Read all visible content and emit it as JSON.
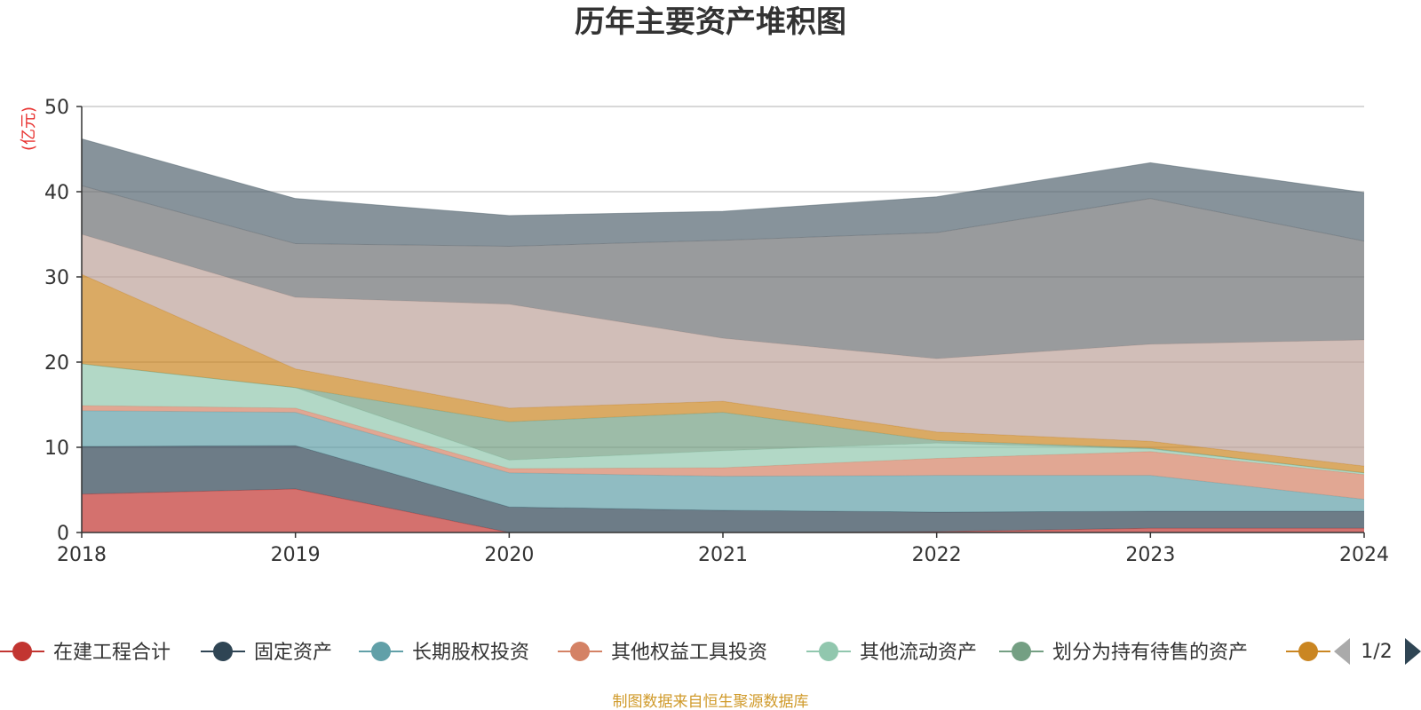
{
  "chart_data": {
    "type": "area",
    "title": "历年主要资产堆积图",
    "y_unit": "(亿元)",
    "x": [
      "2018",
      "2019",
      "2020",
      "2021",
      "2022",
      "2023",
      "2024"
    ],
    "ylim": [
      0,
      50
    ],
    "yticks": [
      0,
      10,
      20,
      30,
      40,
      50
    ],
    "grid": true,
    "stacked": true,
    "series": [
      {
        "name": "在建工程合计",
        "color": "#c23531",
        "values": [
          4.5,
          5.1,
          0.0,
          0.0,
          0.1,
          0.5,
          0.5
        ]
      },
      {
        "name": "固定资产",
        "color": "#2f4554",
        "values": [
          5.6,
          5.1,
          3.0,
          2.6,
          2.3,
          2.0,
          2.0
        ]
      },
      {
        "name": "长期股权投资",
        "color": "#61a0a8",
        "values": [
          4.2,
          3.9,
          4.0,
          4.0,
          4.3,
          4.2,
          1.4
        ]
      },
      {
        "name": "其他权益工具投资",
        "color": "#d48265",
        "values": [
          0.6,
          0.5,
          0.5,
          1.0,
          2.0,
          2.8,
          2.9
        ]
      },
      {
        "name": "其他流动资产",
        "color": "#91c7ae",
        "values": [
          4.9,
          2.4,
          1.0,
          2.0,
          1.8,
          0.3,
          0.2
        ]
      },
      {
        "name": "划分为持有待售的资产",
        "color": "#749f83",
        "values": [
          0.0,
          0.0,
          4.5,
          4.5,
          0.3,
          0.1,
          0.0
        ]
      },
      {
        "name": "",
        "color": "#ca8622",
        "values": [
          10.5,
          2.2,
          1.6,
          1.3,
          1.0,
          0.8,
          0.8
        ]
      },
      {
        "name": "",
        "color": "#bda29a",
        "values": [
          4.7,
          8.4,
          12.2,
          7.4,
          8.6,
          11.4,
          14.8
        ]
      },
      {
        "name": "",
        "color": "#6e7074",
        "values": [
          5.7,
          6.3,
          6.8,
          11.5,
          14.8,
          17.1,
          11.6
        ]
      },
      {
        "name": "",
        "color": "#546570",
        "values": [
          5.5,
          5.3,
          3.6,
          3.4,
          4.2,
          4.2,
          5.7
        ]
      }
    ]
  },
  "legend": {
    "page_indicator": "1/2",
    "visible_count": 7
  },
  "footer": {
    "source": "制图数据来自恒生聚源数据库"
  }
}
